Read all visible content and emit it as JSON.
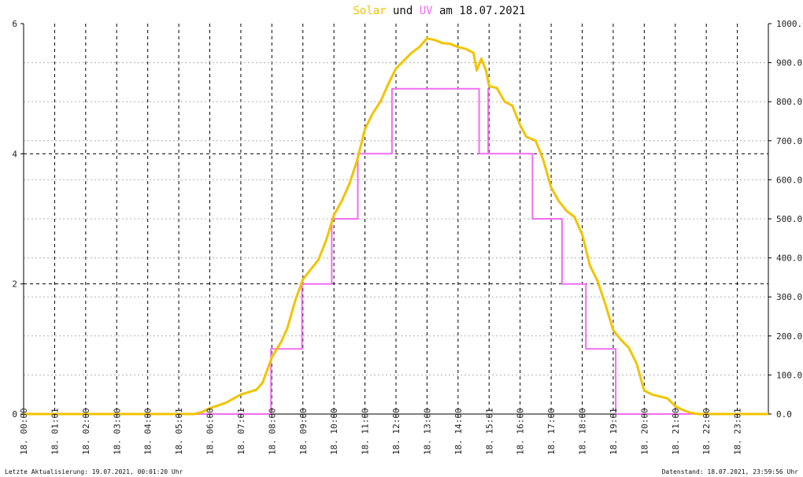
{
  "chart_data": {
    "type": "line",
    "title": {
      "parts": [
        {
          "text": "Solar",
          "color": "#f2c300"
        },
        {
          "text": " und ",
          "color": "#111111"
        },
        {
          "text": "UV",
          "color": "#f06ef0"
        },
        {
          "text": " am 18.07.2021",
          "color": "#111111"
        }
      ]
    },
    "x_tick_labels": [
      "18. 00:00",
      "18. 01:01",
      "18. 02:00",
      "18. 03:00",
      "18. 04:00",
      "18. 05:01",
      "18. 06:00",
      "18. 07:01",
      "18. 08:00",
      "18. 09:00",
      "18. 10:00",
      "18. 11:00",
      "18. 12:00",
      "18. 13:00",
      "18. 14:00",
      "18. 15:01",
      "18. 16:00",
      "18. 17:00",
      "18. 18:00",
      "18. 19:01",
      "18. 20:00",
      "18. 21:00",
      "18. 22:00",
      "18. 23:01"
    ],
    "xlim_hours": [
      0,
      24
    ],
    "y_left": {
      "ticks": [
        "0",
        "2",
        "4",
        "6"
      ],
      "lim": [
        0,
        6
      ]
    },
    "y_right": {
      "ticks": [
        "0.0",
        "100.0",
        "200.0",
        "300.0",
        "400.0",
        "500.0",
        "600.0",
        "700.0",
        "800.0",
        "900.0",
        "1000.0"
      ],
      "lim": [
        0,
        1000
      ]
    },
    "grid": true,
    "series": [
      {
        "name": "Solar",
        "axis": "right",
        "color": "#f2c300",
        "points": [
          [
            0,
            0
          ],
          [
            5.5,
            0
          ],
          [
            5.75,
            5
          ],
          [
            6.0,
            15
          ],
          [
            6.5,
            28
          ],
          [
            7.0,
            50
          ],
          [
            7.5,
            62
          ],
          [
            7.7,
            80
          ],
          [
            8.0,
            145
          ],
          [
            8.15,
            165
          ],
          [
            8.3,
            185
          ],
          [
            8.5,
            220
          ],
          [
            8.75,
            290
          ],
          [
            9.0,
            345
          ],
          [
            9.25,
            370
          ],
          [
            9.5,
            395
          ],
          [
            9.75,
            445
          ],
          [
            10.0,
            510
          ],
          [
            10.25,
            545
          ],
          [
            10.5,
            590
          ],
          [
            10.75,
            650
          ],
          [
            11.0,
            730
          ],
          [
            11.25,
            770
          ],
          [
            11.5,
            800
          ],
          [
            11.75,
            845
          ],
          [
            12.0,
            885
          ],
          [
            12.25,
            905
          ],
          [
            12.5,
            925
          ],
          [
            12.75,
            940
          ],
          [
            13.0,
            962
          ],
          [
            13.25,
            958
          ],
          [
            13.5,
            950
          ],
          [
            13.75,
            948
          ],
          [
            14.0,
            940
          ],
          [
            14.25,
            935
          ],
          [
            14.5,
            925
          ],
          [
            14.6,
            880
          ],
          [
            14.75,
            910
          ],
          [
            14.9,
            880
          ],
          [
            15.0,
            840
          ],
          [
            15.25,
            835
          ],
          [
            15.5,
            800
          ],
          [
            15.75,
            790
          ],
          [
            16.0,
            740
          ],
          [
            16.2,
            710
          ],
          [
            16.5,
            700
          ],
          [
            16.75,
            650
          ],
          [
            17.0,
            580
          ],
          [
            17.25,
            545
          ],
          [
            17.5,
            520
          ],
          [
            17.75,
            505
          ],
          [
            18.0,
            460
          ],
          [
            18.25,
            380
          ],
          [
            18.5,
            340
          ],
          [
            18.75,
            280
          ],
          [
            19.0,
            215
          ],
          [
            19.25,
            190
          ],
          [
            19.5,
            170
          ],
          [
            19.75,
            130
          ],
          [
            20.0,
            60
          ],
          [
            20.25,
            50
          ],
          [
            20.5,
            45
          ],
          [
            20.75,
            40
          ],
          [
            21.0,
            20
          ],
          [
            21.25,
            10
          ],
          [
            21.5,
            3
          ],
          [
            21.75,
            0
          ],
          [
            24.0,
            0
          ]
        ]
      },
      {
        "name": "UV",
        "axis": "left",
        "color": "#f06ef0",
        "points": [
          [
            0,
            0
          ],
          [
            7.97,
            0
          ],
          [
            7.97,
            1
          ],
          [
            8.97,
            1
          ],
          [
            8.97,
            2
          ],
          [
            9.93,
            2
          ],
          [
            9.93,
            3
          ],
          [
            10.77,
            3
          ],
          [
            10.77,
            4
          ],
          [
            11.87,
            4
          ],
          [
            11.87,
            5
          ],
          [
            14.68,
            5
          ],
          [
            14.68,
            4
          ],
          [
            14.97,
            4
          ],
          [
            14.97,
            5
          ],
          [
            14.97,
            4
          ],
          [
            16.4,
            4
          ],
          [
            16.4,
            3
          ],
          [
            17.35,
            3
          ],
          [
            17.35,
            2
          ],
          [
            18.12,
            2
          ],
          [
            18.12,
            1
          ],
          [
            19.08,
            1
          ],
          [
            19.08,
            0
          ],
          [
            24.0,
            0
          ]
        ]
      }
    ]
  },
  "footer": {
    "left": "Letzte Aktualisierung: 19.07.2021, 00:01:20 Uhr",
    "right": "Datenstand: 18.07.2021, 23:59:56 Uhr"
  }
}
